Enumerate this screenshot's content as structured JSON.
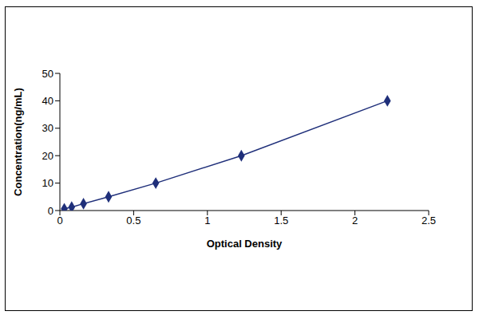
{
  "chart_data": {
    "type": "scatter",
    "x_label": "Optical Density",
    "y_label": "Concentration(ng/mL)",
    "x": [
      0.03,
      0.08,
      0.16,
      0.33,
      0.65,
      1.23,
      2.22
    ],
    "values": [
      0.625,
      1.25,
      2.5,
      5,
      10,
      20,
      40
    ],
    "xlim": [
      0,
      2.5
    ],
    "xticks": [
      0,
      0.5,
      1,
      1.5,
      2,
      2.5
    ],
    "ylim": [
      0,
      50
    ],
    "yticks": [
      0,
      10,
      20,
      30,
      40,
      50
    ],
    "color": "#1f2f7a",
    "marker": "diamond",
    "line_style": "solid",
    "grid": false
  }
}
